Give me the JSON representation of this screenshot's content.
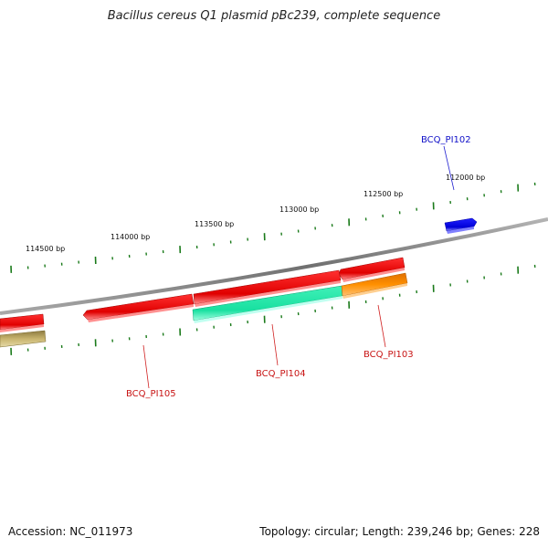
{
  "title": "Bacillus cereus Q1 plasmid pBc239, complete sequence",
  "footer": {
    "accession": "Accession: NC_011973",
    "summary": "Topology: circular; Length: 239,246 bp; Genes: 228"
  },
  "ruler_labels": [
    "112000 bp",
    "112500 bp",
    "113000 bp",
    "113500 bp",
    "114000 bp",
    "114500 bp"
  ],
  "genes": [
    {
      "label": "BCQ_PI102",
      "color": "#0000e6",
      "strand": "+"
    },
    {
      "label": "BCQ_PI103",
      "color": "#ff8c00",
      "strand": "-"
    },
    {
      "label": "BCQ_PI104",
      "color": "#1ee6a0",
      "strand": "-"
    },
    {
      "label": "BCQ_PI105",
      "color": "#e60000",
      "strand": "+"
    }
  ],
  "unlabeled_feature_colors": [
    "#e60000",
    "#c8b46e"
  ],
  "colors": {
    "backbone": "#8c8c8c",
    "tick": "#1a7a1a",
    "label_blue": "#1010c8",
    "label_red": "#c81414"
  }
}
